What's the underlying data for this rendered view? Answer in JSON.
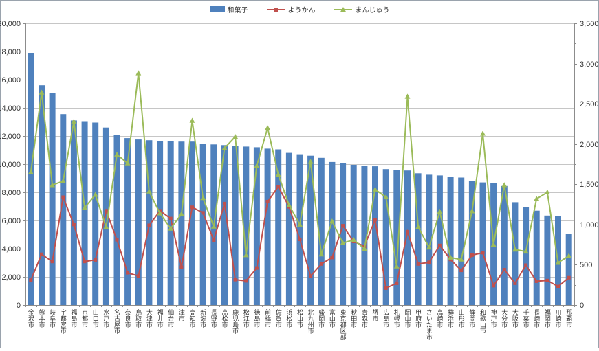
{
  "legend": [
    {
      "label": "和菓子",
      "type": "bar",
      "color": "#4f81bd"
    },
    {
      "label": "ようかん",
      "type": "line-square",
      "color": "#c0504d"
    },
    {
      "label": "まんじゅう",
      "type": "line-triangle",
      "color": "#9bbb59"
    }
  ],
  "chart_data": {
    "type": "bar",
    "subtype": "bar-and-lines-dual-axis",
    "title": "",
    "xlabel": "",
    "ylabel": "",
    "grid": true,
    "legend_position": "top",
    "categories": [
      "金沢市",
      "熊本市",
      "岐阜市",
      "宇都宮市",
      "福島市",
      "京都市",
      "山口市",
      "水戸市",
      "名古屋市",
      "奈良市",
      "鳥取市",
      "大津市",
      "福井市",
      "仙台市",
      "津市",
      "高知市",
      "新潟市",
      "長野市",
      "高松市",
      "鹿児島市",
      "松江市",
      "徳島市",
      "前橋市",
      "佐賀市",
      "浜松市",
      "松山市",
      "北九州市",
      "盛岡市",
      "富山市",
      "東京都区部",
      "秋田市",
      "青森市",
      "堺市",
      "広島市",
      "札幌市",
      "岡山市",
      "甲府市",
      "さいたま市",
      "高崎市",
      "横浜市",
      "山形市",
      "静岡市",
      "和歌山市",
      "神戸市",
      "大分市",
      "大阪市",
      "千葉市",
      "長崎市",
      "福岡市",
      "川崎市",
      "那覇市"
    ],
    "series": [
      {
        "name": "和菓子",
        "type": "bar",
        "axis": "left",
        "color": "#4f81bd",
        "values": [
          17900,
          15600,
          15050,
          13550,
          13100,
          13050,
          12950,
          12600,
          12050,
          11850,
          11750,
          11700,
          11650,
          11650,
          11600,
          11600,
          11450,
          11400,
          11350,
          11300,
          11250,
          11200,
          11100,
          11050,
          10800,
          10700,
          10600,
          10450,
          10150,
          10050,
          9950,
          9900,
          9850,
          9650,
          9600,
          9550,
          9350,
          9250,
          9200,
          9100,
          9050,
          8800,
          8700,
          8680,
          8450,
          7300,
          6950,
          6700,
          6350,
          6300,
          5050
        ]
      },
      {
        "name": "ようかん",
        "type": "line",
        "marker": "square",
        "axis": "right",
        "color": "#c0504d",
        "values": [
          310,
          630,
          540,
          1340,
          1000,
          540,
          560,
          1170,
          810,
          400,
          360,
          990,
          1170,
          1075,
          470,
          1215,
          1145,
          805,
          1260,
          315,
          300,
          460,
          1285,
          1470,
          1220,
          815,
          360,
          510,
          590,
          985,
          790,
          730,
          1060,
          210,
          270,
          910,
          510,
          530,
          740,
          565,
          430,
          620,
          650,
          240,
          440,
          270,
          495,
          295,
          305,
          230,
          340
        ]
      },
      {
        "name": "まんじゅう",
        "type": "line",
        "marker": "triangle",
        "axis": "right",
        "color": "#9bbb59",
        "values": [
          1650,
          2640,
          1490,
          1540,
          2280,
          1210,
          1370,
          970,
          1870,
          1760,
          2880,
          1410,
          1140,
          950,
          1130,
          2290,
          1330,
          975,
          1950,
          2090,
          620,
          1730,
          2200,
          1620,
          1240,
          1000,
          1780,
          630,
          1040,
          770,
          810,
          700,
          1435,
          1340,
          480,
          2590,
          970,
          715,
          1160,
          590,
          565,
          1165,
          2130,
          750,
          1490,
          690,
          665,
          1320,
          1400,
          525,
          610
        ]
      }
    ],
    "left_axis": {
      "min": 0,
      "max": 20000,
      "step": 2000,
      "tick_labels": [
        "20,000",
        "18,000",
        "16,000",
        "14,000",
        "12,000",
        "10,000",
        "8,000",
        "6,000",
        "4,000",
        "2,000",
        "0"
      ]
    },
    "right_axis": {
      "min": 0,
      "max": 3500,
      "step": 500,
      "minor_step": 250,
      "tick_labels": [
        "3,500",
        "3,000",
        "2,500",
        "2,000",
        "1,500",
        "1,000",
        "500",
        "0"
      ]
    }
  }
}
